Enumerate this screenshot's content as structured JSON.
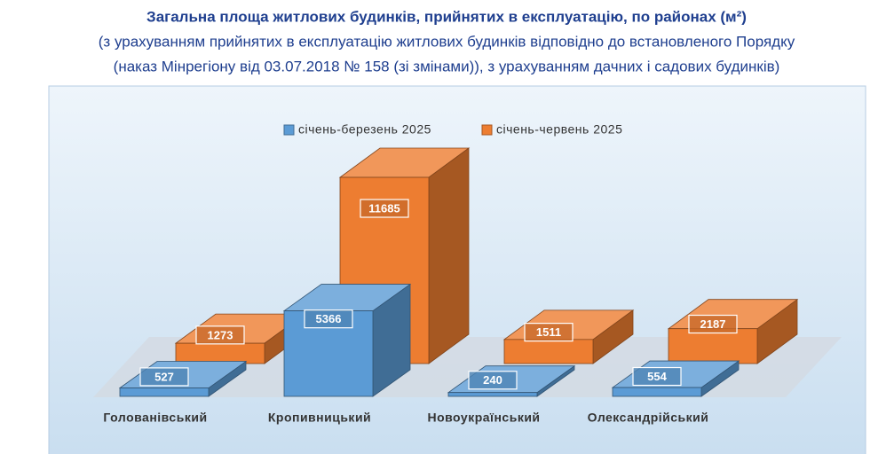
{
  "chart_data": {
    "type": "bar3d",
    "title": "Загальна площа житлових будинків, прийнятих в експлуатацію, по районах (м²)",
    "subtitle": [
      "(з урахуванням прийнятих в експлуатацію житлових будинків відповідно до встановленого Порядку",
      "(наказ Мінрегіону від 03.07.2018 № 158 (зі змінами)), з урахуванням дачних і садових будинків)"
    ],
    "categories": [
      "Голованівський",
      "Кропивницький",
      "Новоукраїнський",
      "Олександрійський"
    ],
    "series": [
      {
        "name": "січень-березень 2025",
        "color": "#5b9bd5",
        "values": [
          527,
          5366,
          240,
          554
        ]
      },
      {
        "name": "січень-червень 2025",
        "color": "#ed7d31",
        "values": [
          1273,
          11685,
          1511,
          2187
        ]
      }
    ]
  }
}
